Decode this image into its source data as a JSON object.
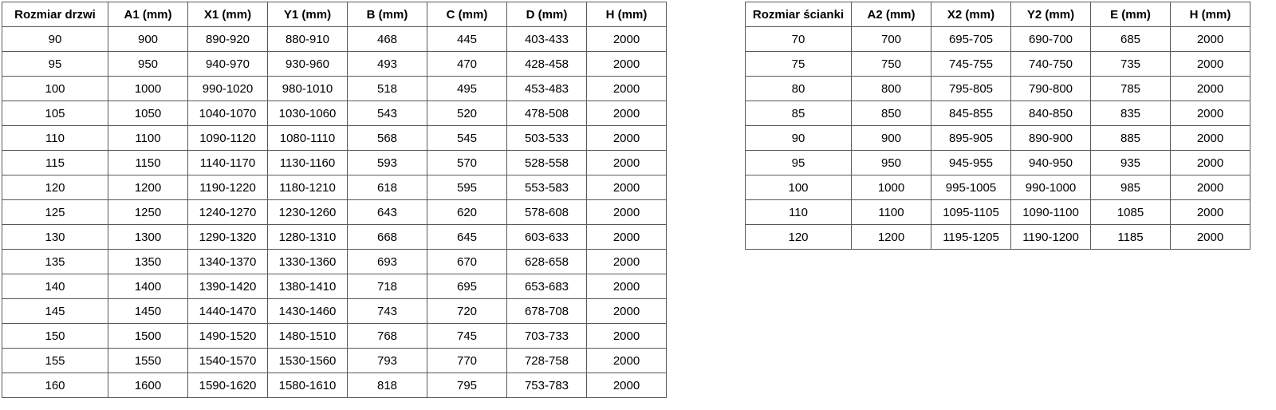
{
  "colors": {
    "background": "#ffffff",
    "border": "#595959",
    "text": "#000000"
  },
  "left_table": {
    "name": "door-size-table",
    "headers": [
      "Rozmiar drzwi",
      "A1 (mm)",
      "X1 (mm)",
      "Y1 (mm)",
      "B (mm)",
      "C (mm)",
      "D (mm)",
      "H (mm)"
    ],
    "rows": [
      [
        "90",
        "900",
        "890-920",
        "880-910",
        "468",
        "445",
        "403-433",
        "2000"
      ],
      [
        "95",
        "950",
        "940-970",
        "930-960",
        "493",
        "470",
        "428-458",
        "2000"
      ],
      [
        "100",
        "1000",
        "990-1020",
        "980-1010",
        "518",
        "495",
        "453-483",
        "2000"
      ],
      [
        "105",
        "1050",
        "1040-1070",
        "1030-1060",
        "543",
        "520",
        "478-508",
        "2000"
      ],
      [
        "110",
        "1100",
        "1090-1120",
        "1080-1110",
        "568",
        "545",
        "503-533",
        "2000"
      ],
      [
        "115",
        "1150",
        "1140-1170",
        "1130-1160",
        "593",
        "570",
        "528-558",
        "2000"
      ],
      [
        "120",
        "1200",
        "1190-1220",
        "1180-1210",
        "618",
        "595",
        "553-583",
        "2000"
      ],
      [
        "125",
        "1250",
        "1240-1270",
        "1230-1260",
        "643",
        "620",
        "578-608",
        "2000"
      ],
      [
        "130",
        "1300",
        "1290-1320",
        "1280-1310",
        "668",
        "645",
        "603-633",
        "2000"
      ],
      [
        "135",
        "1350",
        "1340-1370",
        "1330-1360",
        "693",
        "670",
        "628-658",
        "2000"
      ],
      [
        "140",
        "1400",
        "1390-1420",
        "1380-1410",
        "718",
        "695",
        "653-683",
        "2000"
      ],
      [
        "145",
        "1450",
        "1440-1470",
        "1430-1460",
        "743",
        "720",
        "678-708",
        "2000"
      ],
      [
        "150",
        "1500",
        "1490-1520",
        "1480-1510",
        "768",
        "745",
        "703-733",
        "2000"
      ],
      [
        "155",
        "1550",
        "1540-1570",
        "1530-1560",
        "793",
        "770",
        "728-758",
        "2000"
      ],
      [
        "160",
        "1600",
        "1590-1620",
        "1580-1610",
        "818",
        "795",
        "753-783",
        "2000"
      ]
    ]
  },
  "right_table": {
    "name": "wall-panel-size-table",
    "headers": [
      "Rozmiar ścianki",
      "A2 (mm)",
      "X2 (mm)",
      "Y2 (mm)",
      "E (mm)",
      "H (mm)"
    ],
    "rows": [
      [
        "70",
        "700",
        "695-705",
        "690-700",
        "685",
        "2000"
      ],
      [
        "75",
        "750",
        "745-755",
        "740-750",
        "735",
        "2000"
      ],
      [
        "80",
        "800",
        "795-805",
        "790-800",
        "785",
        "2000"
      ],
      [
        "85",
        "850",
        "845-855",
        "840-850",
        "835",
        "2000"
      ],
      [
        "90",
        "900",
        "895-905",
        "890-900",
        "885",
        "2000"
      ],
      [
        "95",
        "950",
        "945-955",
        "940-950",
        "935",
        "2000"
      ],
      [
        "100",
        "1000",
        "995-1005",
        "990-1000",
        "985",
        "2000"
      ],
      [
        "110",
        "1100",
        "1095-1105",
        "1090-1100",
        "1085",
        "2000"
      ],
      [
        "120",
        "1200",
        "1195-1205",
        "1190-1200",
        "1185",
        "2000"
      ]
    ]
  }
}
